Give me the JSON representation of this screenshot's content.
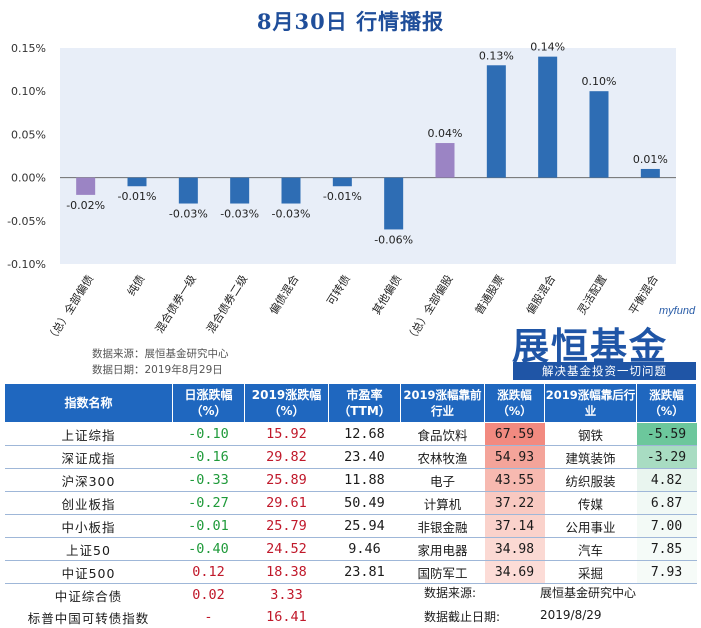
{
  "header": {
    "title": "8月30日  行情播报"
  },
  "chart_data": {
    "type": "bar",
    "categories": [
      "（总）全部偏债",
      "纯债",
      "混合债券一级",
      "混合债券二级",
      "偏债混合",
      "可转债",
      "其他偏债",
      "（总）全部偏股",
      "普通股票",
      "偏股混合",
      "灵活配置",
      "平衡混合"
    ],
    "values": [
      -0.02,
      -0.01,
      -0.03,
      -0.03,
      -0.03,
      -0.01,
      -0.06,
      0.04,
      0.13,
      0.14,
      0.1,
      0.01
    ],
    "data_labels": [
      "-0.02%",
      "-0.01%",
      "-0.03%",
      "-0.03%",
      "-0.03%",
      "-0.01%",
      "-0.06%",
      "0.04%",
      "0.13%",
      "0.14%",
      "0.10%",
      "0.01%"
    ],
    "ytick_labels": [
      "0.15%",
      "0.10%",
      "0.05%",
      "0.00%",
      "-0.05%",
      "-0.10%"
    ],
    "yticks": [
      0.15,
      0.1,
      0.05,
      0.0,
      -0.05,
      -0.1
    ],
    "ylim": [
      -0.1,
      0.15
    ],
    "grid": false,
    "colors": {
      "default": "#2e6db4",
      "highlight": "#9b84c4",
      "plot_bg": "#e8eef8"
    },
    "highlight_indices": [
      0,
      7
    ]
  },
  "source": {
    "line1": "数据来源：展恒基金研究中心",
    "line2": "数据日期：2019年8月29日"
  },
  "logo": {
    "small": "myfund",
    "main": "展恒基金",
    "slogan": "解决基金投资一切问题"
  },
  "index_table": {
    "headers": [
      "指数名称",
      "日涨跌幅（%）",
      "2019涨跌幅（%）",
      "市盈率（TTM）"
    ],
    "rows": [
      {
        "name": "上证综指",
        "day": "-0.10",
        "ytd": "15.92",
        "pe": "12.68",
        "day_color": "green"
      },
      {
        "name": "深证成指",
        "day": "-0.16",
        "ytd": "29.82",
        "pe": "23.40",
        "day_color": "green"
      },
      {
        "name": "沪深300",
        "day": "-0.33",
        "ytd": "25.89",
        "pe": "11.88",
        "day_color": "green"
      },
      {
        "name": "创业板指",
        "day": "-0.27",
        "ytd": "29.61",
        "pe": "50.49",
        "day_color": "green"
      },
      {
        "name": "中小板指",
        "day": "-0.01",
        "ytd": "25.79",
        "pe": "25.94",
        "day_color": "green"
      },
      {
        "name": "上证50",
        "day": "-0.40",
        "ytd": "24.52",
        "pe": "9.46",
        "day_color": "green"
      },
      {
        "name": "中证500",
        "day": "0.12",
        "ytd": "18.38",
        "pe": "23.81",
        "day_color": "red"
      },
      {
        "name": "中证综合债",
        "day": "0.02",
        "ytd": "3.33",
        "pe": "",
        "day_color": "red"
      },
      {
        "name": "标普中国可转债指数",
        "day": "-",
        "ytd": "16.41",
        "pe": "",
        "day_color": "red"
      }
    ]
  },
  "industry_table": {
    "headers": [
      "2019涨幅靠前行业",
      "涨跌幅（%）",
      "2019涨幅靠后行业",
      "涨跌幅（%）"
    ],
    "rows": [
      {
        "top": "食品饮料",
        "top_val": "67.59",
        "bottom": "钢铁",
        "bottom_val": "-5.59"
      },
      {
        "top": "农林牧渔",
        "top_val": "54.93",
        "bottom": "建筑装饰",
        "bottom_val": "-3.29"
      },
      {
        "top": "电子",
        "top_val": "43.55",
        "bottom": "纺织服装",
        "bottom_val": "4.82"
      },
      {
        "top": "计算机",
        "top_val": "37.22",
        "bottom": "传媒",
        "bottom_val": "6.87"
      },
      {
        "top": "非银金融",
        "top_val": "37.14",
        "bottom": "公用事业",
        "bottom_val": "7.00"
      },
      {
        "top": "家用电器",
        "top_val": "34.98",
        "bottom": "汽车",
        "bottom_val": "7.85"
      },
      {
        "top": "国防军工",
        "top_val": "34.69",
        "bottom": "采掘",
        "bottom_val": "7.93"
      }
    ],
    "top_colors": [
      "#f28a80",
      "#f4a49a",
      "#f7b9b0",
      "#f9c9c1",
      "#fad2cb",
      "#fbd9d3",
      "#fcdcd7"
    ],
    "bottom_colors": [
      "#6cc79c",
      "#a8dcc2",
      "#e9f5ef",
      "#f1f9f5",
      "#f3faf6",
      "#f5fbf8",
      "#f6fbf8"
    ]
  },
  "notes": {
    "source_label": "数据来源:",
    "source_value": "展恒基金研究中心",
    "date_label": "数据截止日期:",
    "date_value": "2019/8/29"
  }
}
